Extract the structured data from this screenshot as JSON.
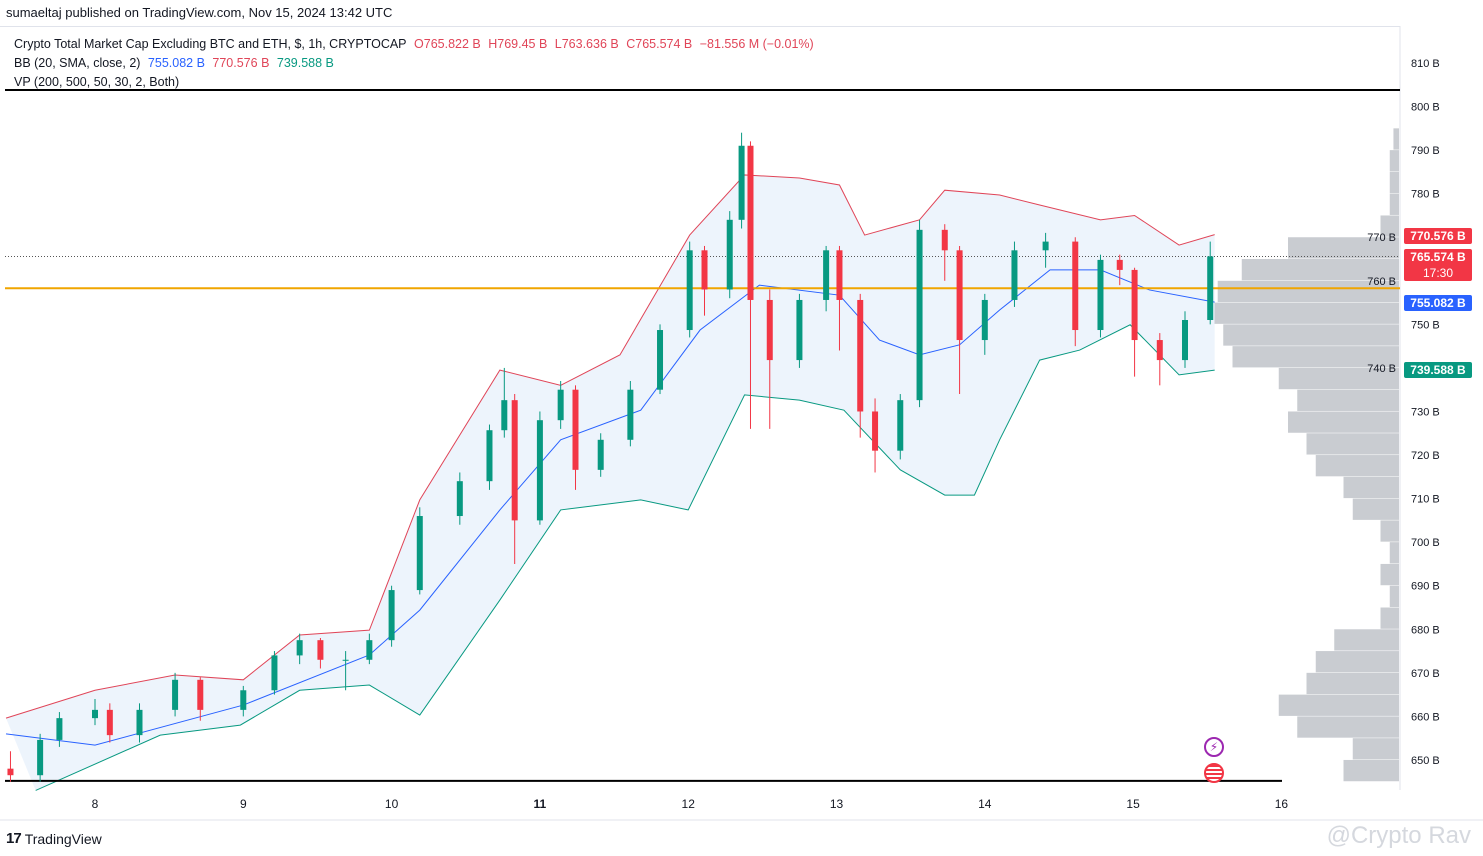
{
  "published": "sumaeltaj published on TradingView.com, Nov 15, 2024 13:42 UTC",
  "legend": {
    "symbol": "Crypto Total Market Cap Excluding BTC and ETH, $, 1h, CRYPTOCAP",
    "open": "O765.822 B",
    "high": "H769.45 B",
    "low": "L763.636 B",
    "close": "C765.574 B",
    "change": "−81.556 M (−0.01%)",
    "bb_label": "BB (20, SMA, close, 2)",
    "bb_basis": "755.082 B",
    "bb_upper": "770.576 B",
    "bb_lower": "739.588 B",
    "vp_label": "VP (200, 500, 50, 30, 2, Both)"
  },
  "badges": {
    "upper": "770.576 B",
    "last": "765.574 B",
    "countdown": "17:30",
    "basis": "755.082 B",
    "lower": "739.588 B"
  },
  "footer": {
    "brand": "TradingView",
    "watermark": "@Crypto Rav"
  },
  "colors": {
    "up": "#089981",
    "down": "#f23645",
    "upper_band": "#e04558",
    "basis": "#2962ff",
    "lower_band": "#089981",
    "band_fill": "#e8f1fb",
    "support": "#f0a500",
    "profile": "#c3c6cc"
  },
  "icons": [
    "lightning-icon",
    "us-flag-icon",
    "tradingview-logo-icon"
  ],
  "chart_data": {
    "type": "candlestick",
    "title": "Crypto Total Market Cap Excluding BTC and ETH, $, 1h, CRYPTOCAP",
    "x_ticks": [
      "8",
      "9",
      "10",
      "11",
      "12",
      "13",
      "14",
      "15",
      "16"
    ],
    "x_tick_values": [
      8,
      9,
      10,
      11,
      12,
      13,
      14,
      15,
      16
    ],
    "y_ticks": [
      "650 B",
      "660 B",
      "670 B",
      "680 B",
      "690 B",
      "700 B",
      "710 B",
      "720 B",
      "730 B",
      "740 B",
      "750 B",
      "760 B",
      "770 B",
      "780 B",
      "790 B",
      "800 B",
      "810 B"
    ],
    "ylim": [
      645,
      813
    ],
    "xlim": [
      7.4,
      16.2
    ],
    "y_unit": "B",
    "grid": false,
    "candles": [
      [
        7.43,
        648,
        652,
        645,
        646.5
      ],
      [
        7.63,
        646.5,
        656,
        645,
        654.6
      ],
      [
        7.76,
        654.6,
        661,
        653,
        659.6
      ],
      [
        8.0,
        659.6,
        664,
        658,
        661.5
      ],
      [
        8.1,
        661.5,
        663,
        654,
        655.7
      ],
      [
        8.3,
        655.7,
        663,
        654,
        661.5
      ],
      [
        8.54,
        661.5,
        670,
        660,
        668.4
      ],
      [
        8.71,
        668.4,
        669,
        659,
        661.5
      ],
      [
        9.0,
        661.5,
        667,
        660,
        666
      ],
      [
        9.21,
        666,
        675,
        665,
        674
      ],
      [
        9.38,
        674,
        679,
        672,
        677.5
      ],
      [
        9.52,
        677.5,
        678,
        671,
        673
      ],
      [
        9.69,
        673,
        675,
        666,
        673
      ],
      [
        9.85,
        673,
        679,
        672,
        677.5
      ],
      [
        10.0,
        677.5,
        690,
        676,
        689
      ],
      [
        10.19,
        689,
        708,
        688,
        706
      ],
      [
        10.46,
        706,
        716,
        704,
        714
      ],
      [
        10.66,
        714,
        727,
        712,
        725.7
      ],
      [
        10.76,
        725.7,
        740,
        724,
        732.6
      ],
      [
        10.83,
        732.6,
        734,
        695,
        705
      ],
      [
        11.0,
        705,
        730,
        704,
        728
      ],
      [
        11.14,
        728,
        737,
        726,
        735
      ],
      [
        11.24,
        735,
        736,
        712,
        716.6
      ],
      [
        11.41,
        716.6,
        725,
        715,
        723.5
      ],
      [
        11.61,
        723.5,
        737,
        722,
        735
      ],
      [
        11.81,
        735,
        750,
        734,
        748.7
      ],
      [
        12.01,
        748.7,
        769,
        747,
        767
      ],
      [
        12.11,
        767,
        768,
        752,
        758
      ],
      [
        12.28,
        758,
        776,
        756,
        774
      ],
      [
        12.36,
        774,
        794,
        772,
        791
      ],
      [
        12.42,
        791,
        792,
        726,
        755.6
      ],
      [
        12.55,
        755.6,
        758,
        726,
        741.8
      ],
      [
        12.75,
        741.8,
        757,
        740,
        755.6
      ],
      [
        12.93,
        755.6,
        768,
        753,
        767
      ],
      [
        13.02,
        767,
        768,
        744,
        755.6
      ],
      [
        13.16,
        755.6,
        757,
        724,
        730
      ],
      [
        13.26,
        730,
        733,
        716,
        721
      ],
      [
        13.43,
        721,
        734,
        719,
        732.6
      ],
      [
        13.56,
        732.6,
        774,
        731,
        771.7
      ],
      [
        13.73,
        771.7,
        773,
        760,
        767
      ],
      [
        13.83,
        767,
        768,
        734,
        746.4
      ],
      [
        14.0,
        746.4,
        757,
        743,
        755.6
      ],
      [
        14.2,
        755.6,
        769,
        754,
        767
      ],
      [
        14.41,
        767,
        771,
        763,
        769
      ],
      [
        14.61,
        769,
        770,
        745,
        748.7
      ],
      [
        14.78,
        748.7,
        766,
        747,
        764.8
      ],
      [
        14.91,
        764.8,
        766,
        759,
        762.5
      ],
      [
        15.01,
        762.5,
        763,
        738,
        746.4
      ],
      [
        15.18,
        746.4,
        748,
        736,
        741.8
      ],
      [
        15.35,
        741.8,
        753,
        740,
        751
      ],
      [
        15.52,
        751,
        769,
        750,
        765.6
      ]
    ],
    "bb_upper": [
      [
        7.4,
        659.6
      ],
      [
        8.0,
        666
      ],
      [
        8.54,
        669.5
      ],
      [
        9.0,
        668.4
      ],
      [
        9.38,
        678.7
      ],
      [
        9.85,
        679.8
      ],
      [
        10.19,
        709.7
      ],
      [
        10.73,
        739.5
      ],
      [
        11.14,
        736
      ],
      [
        11.54,
        743
      ],
      [
        12.01,
        770.5
      ],
      [
        12.38,
        784.3
      ],
      [
        12.75,
        783.6
      ],
      [
        13.02,
        782
      ],
      [
        13.19,
        770.5
      ],
      [
        13.56,
        774
      ],
      [
        13.73,
        780.8
      ],
      [
        14.1,
        779.7
      ],
      [
        14.37,
        777.4
      ],
      [
        14.78,
        774
      ],
      [
        15.01,
        775
      ],
      [
        15.31,
        768.2
      ],
      [
        15.55,
        770.6
      ]
    ],
    "bb_basis": [
      [
        7.4,
        656
      ],
      [
        8.0,
        653.4
      ],
      [
        9.0,
        662.6
      ],
      [
        9.85,
        674.1
      ],
      [
        10.19,
        684.4
      ],
      [
        10.73,
        707.4
      ],
      [
        11.14,
        723.5
      ],
      [
        11.68,
        730.3
      ],
      [
        12.08,
        748.7
      ],
      [
        12.48,
        759
      ],
      [
        13.02,
        756.7
      ],
      [
        13.29,
        746.4
      ],
      [
        13.56,
        743
      ],
      [
        13.83,
        745.3
      ],
      [
        14.1,
        753.3
      ],
      [
        14.44,
        762.5
      ],
      [
        14.78,
        762.5
      ],
      [
        15.11,
        757.9
      ],
      [
        15.55,
        755.1
      ]
    ],
    "bb_lower": [
      [
        7.6,
        643
      ],
      [
        8.44,
        655.7
      ],
      [
        8.98,
        658
      ],
      [
        9.38,
        666
      ],
      [
        9.85,
        667.2
      ],
      [
        10.19,
        660.3
      ],
      [
        10.73,
        686.7
      ],
      [
        11.14,
        707.4
      ],
      [
        11.68,
        709.7
      ],
      [
        12.0,
        707.4
      ],
      [
        12.38,
        733.8
      ],
      [
        12.75,
        732.6
      ],
      [
        13.05,
        730.3
      ],
      [
        13.43,
        716.6
      ],
      [
        13.73,
        710.8
      ],
      [
        13.93,
        710.8
      ],
      [
        14.1,
        723.5
      ],
      [
        14.37,
        741.8
      ],
      [
        14.64,
        744.1
      ],
      [
        14.98,
        749.9
      ],
      [
        15.31,
        738.4
      ],
      [
        15.55,
        739.5
      ]
    ],
    "volume_profile": {
      "bin_size": 5,
      "bins_from": 645,
      "relative_volume": [
        30,
        25,
        55,
        65,
        50,
        45,
        35,
        10,
        5,
        10,
        5,
        10,
        25,
        30,
        45,
        50,
        60,
        55,
        65,
        90,
        95,
        100,
        98,
        85,
        60,
        10,
        5,
        5,
        5,
        3
      ]
    },
    "horizontal_lines": [
      {
        "price": 803.8,
        "color": "#000000"
      },
      {
        "price": 645.2,
        "color": "#000000"
      },
      {
        "price": 758.3,
        "color": "#f0a500"
      }
    ],
    "last_price": 765.574
  }
}
